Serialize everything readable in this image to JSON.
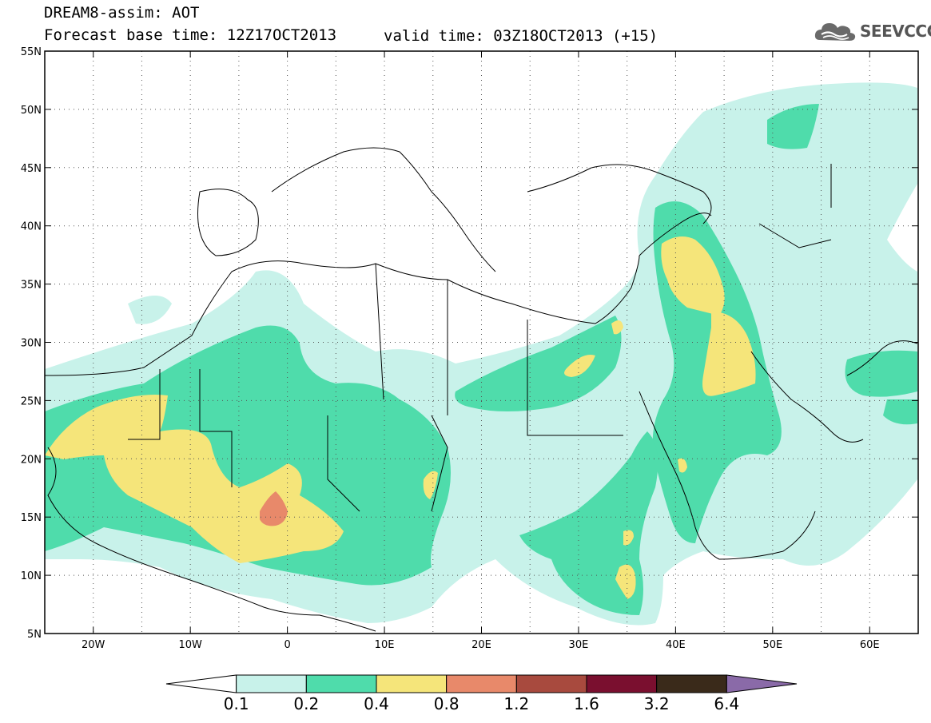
{
  "header": {
    "title": "DREAM8-assim: AOT",
    "base_time": "Forecast base time: 12Z17OCT2013",
    "valid_time": "valid time: 03Z18OCT2013 (+15)",
    "logo_text": "SEEVCCC",
    "logo_icon": "cloud-icon"
  },
  "map": {
    "lon_range": [
      -25,
      65
    ],
    "lat_range": [
      5,
      55
    ],
    "lon_ticks": [
      {
        "value": -20,
        "label": "20W"
      },
      {
        "value": -10,
        "label": "10W"
      },
      {
        "value": 0,
        "label": "0"
      },
      {
        "value": 10,
        "label": "10E"
      },
      {
        "value": 20,
        "label": "20E"
      },
      {
        "value": 30,
        "label": "30E"
      },
      {
        "value": 40,
        "label": "40E"
      },
      {
        "value": 50,
        "label": "50E"
      },
      {
        "value": 60,
        "label": "60E"
      }
    ],
    "lat_ticks": [
      {
        "value": 5,
        "label": "5N"
      },
      {
        "value": 10,
        "label": "10N"
      },
      {
        "value": 15,
        "label": "15N"
      },
      {
        "value": 20,
        "label": "20N"
      },
      {
        "value": 25,
        "label": "25N"
      },
      {
        "value": 30,
        "label": "30N"
      },
      {
        "value": 35,
        "label": "35N"
      },
      {
        "value": 40,
        "label": "40N"
      },
      {
        "value": 45,
        "label": "45N"
      },
      {
        "value": 50,
        "label": "50N"
      },
      {
        "value": 55,
        "label": "55N"
      }
    ],
    "grid": "dotted"
  },
  "legend": {
    "labels": [
      "0.1",
      "0.2",
      "0.4",
      "0.8",
      "1.2",
      "1.6",
      "3.2",
      "6.4"
    ],
    "colors": [
      "#ffffff",
      "#c8f2ea",
      "#4fdcab",
      "#f5e57a",
      "#e8896a",
      "#a84a3e",
      "#7a0f2f",
      "#3a2a1a",
      "#8a6aa8"
    ]
  }
}
